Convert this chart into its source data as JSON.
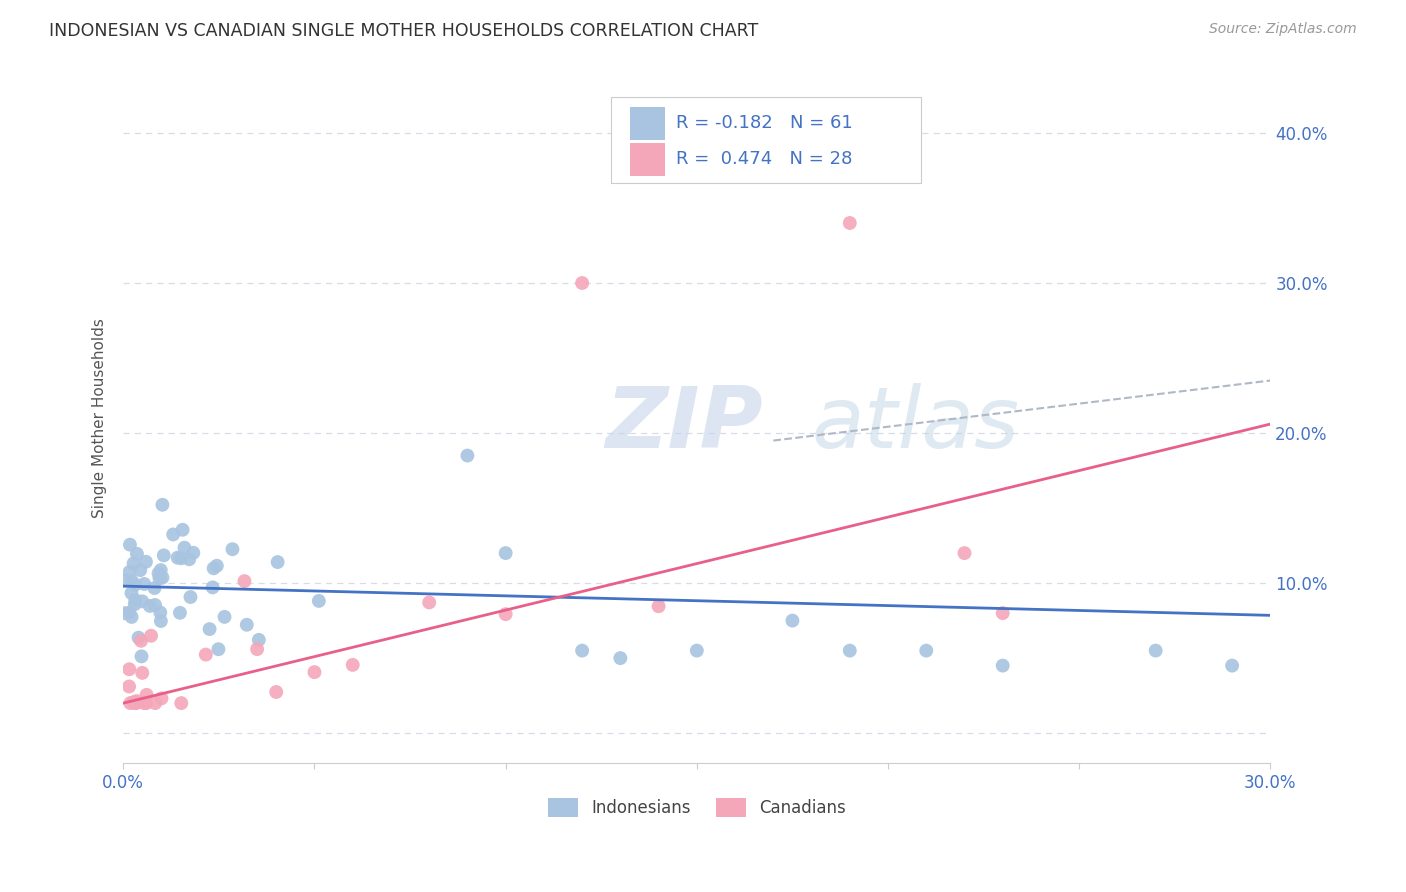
{
  "title": "INDONESIAN VS CANADIAN SINGLE MOTHER HOUSEHOLDS CORRELATION CHART",
  "source": "Source: ZipAtlas.com",
  "ylabel": "Single Mother Households",
  "xlim": [
    0.0,
    0.3
  ],
  "ylim": [
    -0.02,
    0.44
  ],
  "plot_ylim": [
    -0.02,
    0.44
  ],
  "xtick_positions": [
    0.0,
    0.05,
    0.1,
    0.15,
    0.2,
    0.25,
    0.3
  ],
  "ytick_positions": [
    0.0,
    0.1,
    0.2,
    0.3,
    0.4
  ],
  "watermark_zip": "ZIP",
  "watermark_atlas": "atlas",
  "legend_text1": "R = -0.182   N = 61",
  "legend_text2": "R =  0.474   N = 28",
  "indonesian_color": "#a8c4e0",
  "canadian_color": "#f4a7b9",
  "indonesian_line_color": "#4472c4",
  "canadian_line_color": "#e8608a",
  "trend_dash_color": "#b0b8c8",
  "background_color": "#ffffff",
  "grid_color": "#d8dce8",
  "title_color": "#333333",
  "source_color": "#999999",
  "tick_color": "#4472c4",
  "ylabel_color": "#555555",
  "legend_label1": "Indonesians",
  "legend_label2": "Canadians",
  "indo_R": -0.182,
  "can_R": 0.474,
  "indo_intercept": 0.098,
  "indo_slope": -0.065,
  "can_intercept": 0.02,
  "can_slope": 0.62
}
